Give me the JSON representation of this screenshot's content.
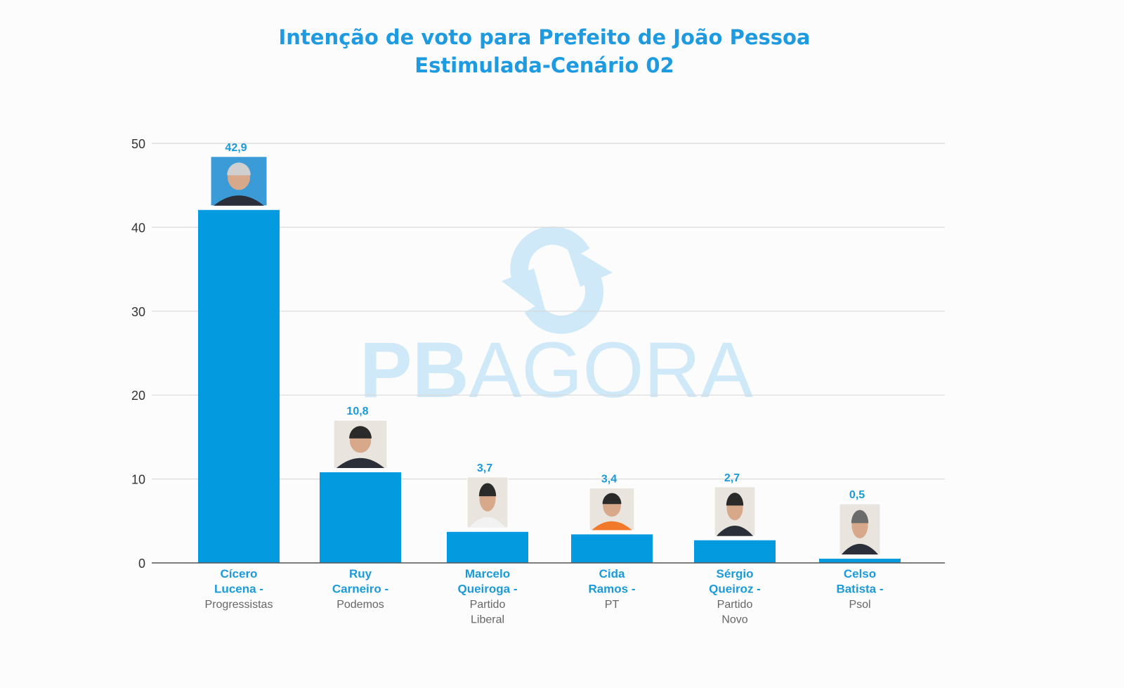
{
  "title": "Intenção de voto para Prefeito de João Pessoa",
  "subtitle": "Estimulada-Cenário 02",
  "watermark": {
    "text_bold": "PB",
    "text_light": "AGORA",
    "icon": "refresh-cycle-icon",
    "color": "#cfe9f8"
  },
  "colors": {
    "bar": "#039ae0",
    "label": "#1b9ad8",
    "party": "#666666",
    "axis": "#333333",
    "grid": "#d9d9d9"
  },
  "chart_data": {
    "type": "bar",
    "ylim": [
      0,
      50
    ],
    "yticks": [
      0,
      10,
      20,
      30,
      40,
      50
    ],
    "grid": true,
    "categories": [
      {
        "name": [
          "Cícero",
          "Lucena -"
        ],
        "party": [
          "Progressistas"
        ],
        "photo": "candidate-photo-cicero-lucena"
      },
      {
        "name": [
          "Ruy",
          "Carneiro -"
        ],
        "party": [
          "Podemos"
        ],
        "photo": "candidate-photo-ruy-carneiro"
      },
      {
        "name": [
          "Marcelo",
          "Queiroga -"
        ],
        "party": [
          "Partido",
          "Liberal"
        ],
        "photo": "candidate-photo-marcelo-queiroga"
      },
      {
        "name": [
          "Cida",
          "Ramos -"
        ],
        "party": [
          "PT"
        ],
        "photo": "candidate-photo-cida-ramos"
      },
      {
        "name": [
          "Sérgio",
          "Queiroz -"
        ],
        "party": [
          "Partido",
          "Novo"
        ],
        "photo": "candidate-photo-sergio-queiroz"
      },
      {
        "name": [
          "Celso",
          "Batista -"
        ],
        "party": [
          "Psol"
        ],
        "photo": "candidate-photo-celso-batista"
      }
    ],
    "values": [
      42.9,
      10.8,
      3.7,
      3.4,
      2.7,
      0.5
    ],
    "value_labels": [
      "42,9",
      "10,8",
      "3,7",
      "3,4",
      "2,7",
      "0,5"
    ]
  }
}
